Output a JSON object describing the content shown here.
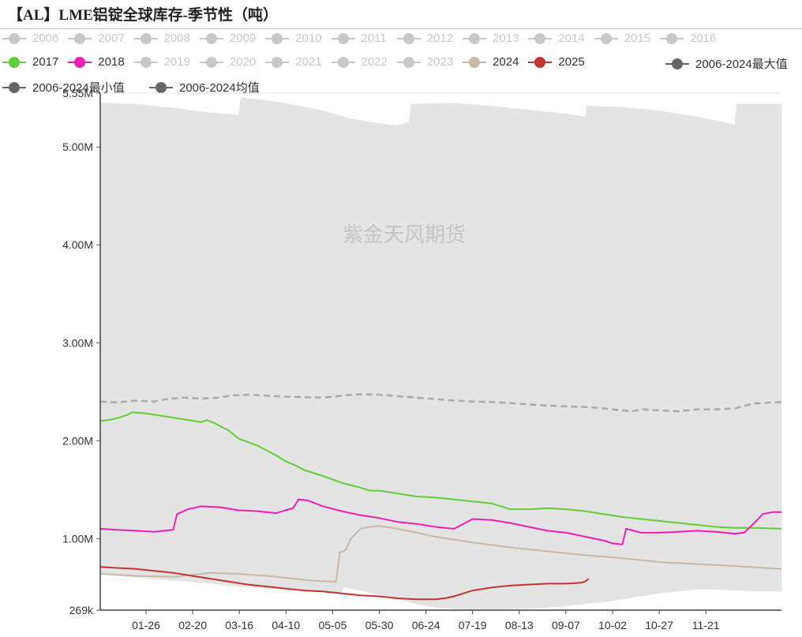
{
  "title": "【AL】LME铝锭全球库存-季节性（吨）",
  "watermark": "紫金天风期货",
  "legend": [
    {
      "name": "2006",
      "color": "#c8c8c8",
      "active": false
    },
    {
      "name": "2007",
      "color": "#c8c8c8",
      "active": false
    },
    {
      "name": "2008",
      "color": "#c8c8c8",
      "active": false
    },
    {
      "name": "2009",
      "color": "#c8c8c8",
      "active": false
    },
    {
      "name": "2010",
      "color": "#c8c8c8",
      "active": false
    },
    {
      "name": "2011",
      "color": "#c8c8c8",
      "active": false
    },
    {
      "name": "2012",
      "color": "#c8c8c8",
      "active": false
    },
    {
      "name": "2013",
      "color": "#c8c8c8",
      "active": false
    },
    {
      "name": "2014",
      "color": "#c8c8c8",
      "active": false
    },
    {
      "name": "2015",
      "color": "#c8c8c8",
      "active": false
    },
    {
      "name": "2016",
      "color": "#c8c8c8",
      "active": false
    },
    {
      "name": "2017",
      "color": "#5fce37",
      "active": true
    },
    {
      "name": "2018",
      "color": "#f01db4",
      "active": true
    },
    {
      "name": "2019",
      "color": "#c8c8c8",
      "active": false
    },
    {
      "name": "2020",
      "color": "#c8c8c8",
      "active": false
    },
    {
      "name": "2021",
      "color": "#c8c8c8",
      "active": false
    },
    {
      "name": "2022",
      "color": "#c8c8c8",
      "active": false
    },
    {
      "name": "2023",
      "color": "#c8c8c8",
      "active": false
    },
    {
      "name": "2024",
      "color": "#c8b8a5",
      "active": true
    },
    {
      "name": "2025",
      "color": "#c23531",
      "active": true
    },
    {
      "name": "2006-2024最大值",
      "color": "#666666",
      "active": true
    },
    {
      "name": "2006-2024最小值",
      "color": "#666666",
      "active": true
    },
    {
      "name": "2006-2024均值",
      "color": "#666666",
      "active": true
    }
  ],
  "chart_data": {
    "type": "line",
    "x_ticks": [
      "01-26",
      "02-20",
      "03-16",
      "04-10",
      "05-05",
      "05-30",
      "06-24",
      "07-19",
      "08-13",
      "09-07",
      "10-02",
      "10-27",
      "11-21"
    ],
    "y_ticks": [
      "269k",
      "1.00M",
      "2.00M",
      "3.00M",
      "4.00M",
      "5.00M",
      "5.55M"
    ],
    "ylim": [
      269000,
      5550000
    ],
    "xlim": [
      1,
      365
    ],
    "grid": "horizontal",
    "legend_position": "top",
    "band": {
      "max": [
        [
          1,
          5450000
        ],
        [
          20,
          5440000
        ],
        [
          40,
          5400000
        ],
        [
          60,
          5350000
        ],
        [
          75,
          5330000
        ],
        [
          76,
          5510000
        ],
        [
          100,
          5450000
        ],
        [
          120,
          5370000
        ],
        [
          135,
          5290000
        ],
        [
          150,
          5240000
        ],
        [
          160,
          5220000
        ],
        [
          166,
          5260000
        ],
        [
          167,
          5440000
        ],
        [
          190,
          5450000
        ],
        [
          210,
          5420000
        ],
        [
          230,
          5380000
        ],
        [
          250,
          5340000
        ],
        [
          260,
          5310000
        ],
        [
          261,
          5420000
        ],
        [
          280,
          5410000
        ],
        [
          300,
          5370000
        ],
        [
          320,
          5310000
        ],
        [
          335,
          5250000
        ],
        [
          340,
          5230000
        ],
        [
          341,
          5440000
        ],
        [
          365,
          5440000
        ]
      ],
      "min": [
        [
          1,
          640000
        ],
        [
          20,
          600000
        ],
        [
          40,
          570000
        ],
        [
          60,
          540000
        ],
        [
          80,
          500000
        ],
        [
          100,
          480000
        ],
        [
          120,
          450000
        ],
        [
          130,
          430000
        ],
        [
          131,
          500000
        ],
        [
          140,
          470000
        ],
        [
          150,
          420000
        ],
        [
          160,
          380000
        ],
        [
          170,
          330000
        ],
        [
          180,
          300000
        ],
        [
          190,
          280000
        ],
        [
          200,
          275000
        ],
        [
          210,
          275000
        ],
        [
          220,
          280000
        ],
        [
          230,
          285000
        ],
        [
          240,
          295000
        ],
        [
          250,
          310000
        ],
        [
          260,
          330000
        ],
        [
          270,
          350000
        ],
        [
          280,
          380000
        ],
        [
          290,
          410000
        ],
        [
          300,
          440000
        ],
        [
          310,
          460000
        ],
        [
          320,
          480000
        ],
        [
          330,
          480000
        ],
        [
          340,
          470000
        ],
        [
          350,
          460000
        ],
        [
          365,
          460000
        ]
      ]
    },
    "series": [
      {
        "name": "2006-2024均值",
        "style": "dashed",
        "color": "#aaaaaa",
        "points": [
          [
            1,
            2400000
          ],
          [
            10,
            2390000
          ],
          [
            20,
            2410000
          ],
          [
            30,
            2400000
          ],
          [
            35,
            2420000
          ],
          [
            45,
            2440000
          ],
          [
            55,
            2430000
          ],
          [
            65,
            2440000
          ],
          [
            70,
            2460000
          ],
          [
            80,
            2470000
          ],
          [
            90,
            2460000
          ],
          [
            100,
            2450000
          ],
          [
            110,
            2445000
          ],
          [
            120,
            2440000
          ],
          [
            130,
            2460000
          ],
          [
            140,
            2475000
          ],
          [
            150,
            2470000
          ],
          [
            160,
            2455000
          ],
          [
            170,
            2440000
          ],
          [
            180,
            2425000
          ],
          [
            190,
            2410000
          ],
          [
            200,
            2400000
          ],
          [
            210,
            2395000
          ],
          [
            220,
            2385000
          ],
          [
            230,
            2370000
          ],
          [
            240,
            2360000
          ],
          [
            250,
            2350000
          ],
          [
            260,
            2345000
          ],
          [
            270,
            2330000
          ],
          [
            280,
            2310000
          ],
          [
            285,
            2300000
          ],
          [
            290,
            2320000
          ],
          [
            300,
            2310000
          ],
          [
            310,
            2300000
          ],
          [
            320,
            2320000
          ],
          [
            330,
            2320000
          ],
          [
            340,
            2330000
          ],
          [
            350,
            2380000
          ],
          [
            365,
            2395000
          ]
        ]
      },
      {
        "name": "2017",
        "style": "solid",
        "color": "#5fce37",
        "points": [
          [
            1,
            2200000
          ],
          [
            5,
            2210000
          ],
          [
            10,
            2230000
          ],
          [
            15,
            2260000
          ],
          [
            18,
            2290000
          ],
          [
            25,
            2280000
          ],
          [
            35,
            2250000
          ],
          [
            45,
            2220000
          ],
          [
            55,
            2190000
          ],
          [
            58,
            2210000
          ],
          [
            62,
            2180000
          ],
          [
            70,
            2100000
          ],
          [
            75,
            2020000
          ],
          [
            85,
            1950000
          ],
          [
            95,
            1850000
          ],
          [
            100,
            1790000
          ],
          [
            105,
            1750000
          ],
          [
            110,
            1700000
          ],
          [
            120,
            1640000
          ],
          [
            130,
            1570000
          ],
          [
            140,
            1520000
          ],
          [
            145,
            1490000
          ],
          [
            150,
            1490000
          ],
          [
            160,
            1460000
          ],
          [
            170,
            1430000
          ],
          [
            180,
            1420000
          ],
          [
            190,
            1400000
          ],
          [
            200,
            1380000
          ],
          [
            210,
            1360000
          ],
          [
            215,
            1330000
          ],
          [
            220,
            1300000
          ],
          [
            230,
            1300000
          ],
          [
            240,
            1310000
          ],
          [
            250,
            1300000
          ],
          [
            260,
            1280000
          ],
          [
            270,
            1250000
          ],
          [
            280,
            1220000
          ],
          [
            290,
            1200000
          ],
          [
            300,
            1180000
          ],
          [
            310,
            1160000
          ],
          [
            320,
            1140000
          ],
          [
            330,
            1120000
          ],
          [
            340,
            1110000
          ],
          [
            350,
            1110000
          ],
          [
            365,
            1100000
          ]
        ]
      },
      {
        "name": "2018",
        "style": "solid",
        "color": "#f01db4",
        "points": [
          [
            1,
            1100000
          ],
          [
            10,
            1090000
          ],
          [
            20,
            1080000
          ],
          [
            30,
            1070000
          ],
          [
            35,
            1080000
          ],
          [
            40,
            1090000
          ],
          [
            42,
            1250000
          ],
          [
            48,
            1300000
          ],
          [
            55,
            1330000
          ],
          [
            65,
            1320000
          ],
          [
            75,
            1290000
          ],
          [
            85,
            1280000
          ],
          [
            95,
            1260000
          ],
          [
            100,
            1290000
          ],
          [
            104,
            1310000
          ],
          [
            107,
            1400000
          ],
          [
            112,
            1390000
          ],
          [
            120,
            1330000
          ],
          [
            130,
            1280000
          ],
          [
            140,
            1240000
          ],
          [
            150,
            1210000
          ],
          [
            160,
            1170000
          ],
          [
            170,
            1150000
          ],
          [
            180,
            1120000
          ],
          [
            190,
            1100000
          ],
          [
            195,
            1150000
          ],
          [
            200,
            1200000
          ],
          [
            210,
            1190000
          ],
          [
            220,
            1160000
          ],
          [
            230,
            1120000
          ],
          [
            240,
            1080000
          ],
          [
            250,
            1060000
          ],
          [
            260,
            1020000
          ],
          [
            270,
            980000
          ],
          [
            275,
            950000
          ],
          [
            280,
            940000
          ],
          [
            282,
            1100000
          ],
          [
            290,
            1060000
          ],
          [
            300,
            1060000
          ],
          [
            310,
            1070000
          ],
          [
            320,
            1080000
          ],
          [
            330,
            1070000
          ],
          [
            340,
            1050000
          ],
          [
            345,
            1060000
          ],
          [
            350,
            1150000
          ],
          [
            355,
            1250000
          ],
          [
            360,
            1270000
          ],
          [
            365,
            1270000
          ]
        ]
      },
      {
        "name": "2024",
        "style": "solid",
        "color": "#c8b8a5",
        "points": [
          [
            1,
            640000
          ],
          [
            20,
            620000
          ],
          [
            40,
            610000
          ],
          [
            50,
            630000
          ],
          [
            60,
            650000
          ],
          [
            75,
            640000
          ],
          [
            90,
            620000
          ],
          [
            105,
            590000
          ],
          [
            115,
            570000
          ],
          [
            127,
            560000
          ],
          [
            129,
            860000
          ],
          [
            132,
            880000
          ],
          [
            135,
            1000000
          ],
          [
            140,
            1100000
          ],
          [
            145,
            1120000
          ],
          [
            150,
            1130000
          ],
          [
            160,
            1100000
          ],
          [
            170,
            1060000
          ],
          [
            180,
            1020000
          ],
          [
            190,
            990000
          ],
          [
            200,
            960000
          ],
          [
            220,
            910000
          ],
          [
            240,
            870000
          ],
          [
            260,
            830000
          ],
          [
            280,
            800000
          ],
          [
            300,
            760000
          ],
          [
            320,
            740000
          ],
          [
            340,
            720000
          ],
          [
            365,
            690000
          ]
        ]
      },
      {
        "name": "2025",
        "style": "solid",
        "color": "#c23531",
        "points": [
          [
            1,
            710000
          ],
          [
            10,
            700000
          ],
          [
            20,
            690000
          ],
          [
            30,
            670000
          ],
          [
            40,
            650000
          ],
          [
            50,
            620000
          ],
          [
            60,
            590000
          ],
          [
            70,
            560000
          ],
          [
            80,
            530000
          ],
          [
            90,
            510000
          ],
          [
            100,
            490000
          ],
          [
            110,
            470000
          ],
          [
            120,
            460000
          ],
          [
            130,
            440000
          ],
          [
            140,
            420000
          ],
          [
            150,
            410000
          ],
          [
            160,
            390000
          ],
          [
            170,
            380000
          ],
          [
            180,
            380000
          ],
          [
            185,
            390000
          ],
          [
            190,
            410000
          ],
          [
            195,
            440000
          ],
          [
            200,
            470000
          ],
          [
            210,
            500000
          ],
          [
            220,
            520000
          ],
          [
            230,
            530000
          ],
          [
            240,
            540000
          ],
          [
            250,
            540000
          ],
          [
            255,
            545000
          ],
          [
            258,
            550000
          ],
          [
            260,
            560000
          ],
          [
            262,
            590000
          ]
        ]
      }
    ]
  }
}
